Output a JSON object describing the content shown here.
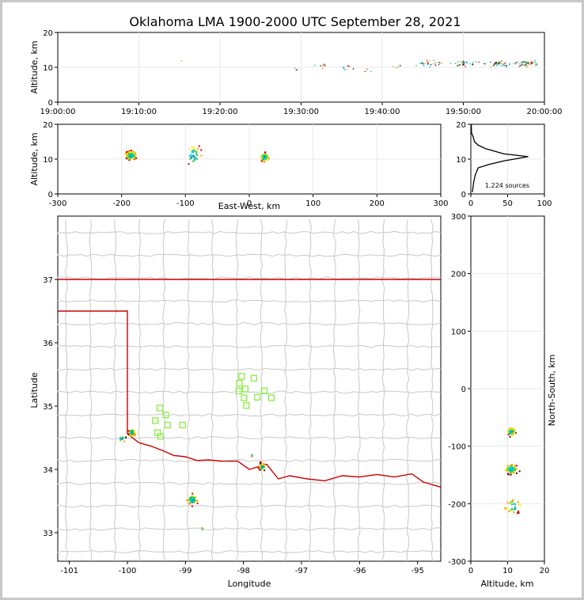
{
  "title": "Oklahoma LMA 1900-2000 UTC September 28, 2021",
  "chart_data": [
    {
      "id": "time_height",
      "type": "scatter",
      "ylabel": "Altitude, km",
      "xlabel": "",
      "xticks": [
        "19:00:00",
        "19:10:00",
        "19:20:00",
        "19:30:00",
        "19:40:00",
        "19:50:00",
        "20:00:00"
      ],
      "xlim": [
        0,
        60
      ],
      "ylim": [
        0,
        20
      ],
      "yticks": [
        0,
        10,
        20
      ],
      "grid": true,
      "clusters": [
        {
          "t": 14.8,
          "alt": 11.5,
          "n": 1
        },
        {
          "t": 29.0,
          "alt": 10.0,
          "n": 3
        },
        {
          "t": 32.5,
          "alt": 10.5,
          "n": 8
        },
        {
          "t": 35.5,
          "alt": 10.0,
          "n": 8
        },
        {
          "t": 38.0,
          "alt": 9.5,
          "n": 4
        },
        {
          "t": 41.5,
          "alt": 10.0,
          "n": 4
        },
        {
          "t": 46.0,
          "alt": 11.0,
          "n": 25
        },
        {
          "t": 50.0,
          "alt": 11.0,
          "n": 30
        },
        {
          "t": 54.5,
          "alt": 11.0,
          "n": 40
        },
        {
          "t": 58.0,
          "alt": 11.0,
          "n": 50
        }
      ]
    },
    {
      "id": "ew_height",
      "type": "scatter",
      "xlabel": "East-West, km",
      "ylabel": "Altitude, km",
      "xlim": [
        -300,
        300
      ],
      "ylim": [
        0,
        20
      ],
      "xticks": [
        -300,
        -200,
        -100,
        0,
        100,
        200,
        300
      ],
      "yticks": [
        0,
        10,
        20
      ],
      "grid": true,
      "clusters": [
        {
          "x": -185,
          "alt": 11,
          "n": 90,
          "sx": 8,
          "sy": 1.2
        },
        {
          "x": -88,
          "alt": 11,
          "n": 35,
          "sx": 12,
          "sy": 2.5
        },
        {
          "x": 24,
          "alt": 10.5,
          "n": 60,
          "sx": 6,
          "sy": 1.2
        }
      ]
    },
    {
      "id": "alt_histogram",
      "type": "line",
      "annotation": "1,224 sources",
      "xlim": [
        0,
        100
      ],
      "ylim": [
        0,
        20
      ],
      "xticks": [
        0,
        50,
        100
      ],
      "yticks": [
        0,
        10,
        20
      ],
      "grid": true,
      "points": [
        [
          2,
          0.5
        ],
        [
          3,
          2
        ],
        [
          4,
          3.5
        ],
        [
          6,
          5.5
        ],
        [
          10,
          7.5
        ],
        [
          25,
          8.5
        ],
        [
          45,
          9.5
        ],
        [
          78,
          10.7
        ],
        [
          45,
          11.5
        ],
        [
          20,
          13
        ],
        [
          10,
          14
        ],
        [
          5,
          15
        ],
        [
          3,
          16.5
        ],
        [
          1,
          17.5
        ],
        [
          0.5,
          20
        ]
      ]
    },
    {
      "id": "plan_map",
      "type": "scatter",
      "xlabel": "Longitude",
      "ylabel": "Latitude",
      "xlim": [
        -101.2,
        -94.6
      ],
      "ylim": [
        32.55,
        38
      ],
      "xticks": [
        -101,
        -100,
        -99,
        -98,
        -97,
        -96,
        -95
      ],
      "yticks": [
        33,
        34,
        35,
        36,
        37
      ],
      "sensors": [
        {
          "lon": -98.03,
          "lat": 35.47
        },
        {
          "lon": -97.82,
          "lat": 35.44
        },
        {
          "lon": -98.07,
          "lat": 35.36
        },
        {
          "lon": -97.97,
          "lat": 35.27
        },
        {
          "lon": -98.08,
          "lat": 35.24
        },
        {
          "lon": -97.64,
          "lat": 35.24
        },
        {
          "lon": -97.76,
          "lat": 35.14
        },
        {
          "lon": -97.99,
          "lat": 35.13
        },
        {
          "lon": -97.52,
          "lat": 35.13
        },
        {
          "lon": -97.95,
          "lat": 35.01
        },
        {
          "lon": -99.44,
          "lat": 34.97
        },
        {
          "lon": -99.34,
          "lat": 34.86
        },
        {
          "lon": -99.52,
          "lat": 34.77
        },
        {
          "lon": -99.31,
          "lat": 34.7
        },
        {
          "lon": -99.05,
          "lat": 34.7
        },
        {
          "lon": -99.48,
          "lat": 34.58
        },
        {
          "lon": -99.43,
          "lat": 34.52
        }
      ],
      "clusters": [
        {
          "lon": -99.92,
          "lat": 34.58,
          "n": 90,
          "s": 0.05
        },
        {
          "lon": -100.1,
          "lat": 34.48,
          "n": 12,
          "s": 0.05
        },
        {
          "lon": -98.88,
          "lat": 33.52,
          "n": 60,
          "s": 0.08
        },
        {
          "lon": -97.68,
          "lat": 34.04,
          "n": 50,
          "s": 0.05
        },
        {
          "lon": -97.85,
          "lat": 34.22,
          "n": 4,
          "s": 0.02
        },
        {
          "lon": -98.7,
          "lat": 33.06,
          "n": 2,
          "s": 0.02
        }
      ]
    },
    {
      "id": "ns_height",
      "type": "scatter",
      "xlabel": "Altitude, km",
      "ylabel": "North-South, km",
      "xlim": [
        0,
        20
      ],
      "ylim": [
        -300,
        300
      ],
      "xticks": [
        0,
        10,
        20
      ],
      "yticks": [
        -300,
        -200,
        -100,
        0,
        100,
        200,
        300
      ],
      "grid": true,
      "clusters": [
        {
          "alt": 11,
          "y": -75,
          "n": 80,
          "sx": 1.0,
          "sy": 6
        },
        {
          "alt": 11,
          "y": -140,
          "n": 80,
          "sx": 1.5,
          "sy": 7
        },
        {
          "alt": 11.5,
          "y": -205,
          "n": 30,
          "sx": 2.0,
          "sy": 10
        }
      ]
    }
  ],
  "colors": {
    "border": "#cc0000",
    "county": "#c8c8c8",
    "sensor": "#88ee44",
    "src_cold": "#00aacc",
    "src_mid": "#ffee00",
    "src_hot": "#cc0000"
  }
}
